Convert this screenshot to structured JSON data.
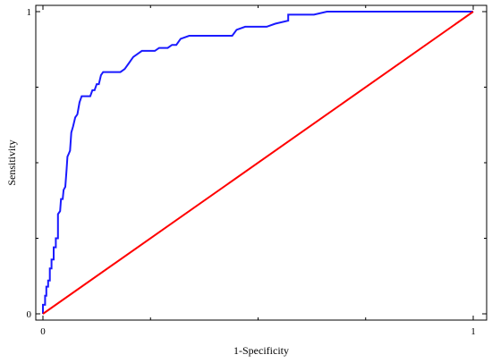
{
  "chart_data": {
    "type": "line",
    "title": "",
    "xlabel": "1-Specificity",
    "ylabel": "Sensitivity",
    "xlim": [
      0,
      1
    ],
    "ylim": [
      0,
      1
    ],
    "x_ticks": [
      "0",
      "1"
    ],
    "y_ticks": [
      "0",
      "1"
    ],
    "grid": false,
    "series": [
      {
        "color": "#1a1aff",
        "points": [
          [
            0.0,
            0.0
          ],
          [
            0.0,
            0.03
          ],
          [
            0.005,
            0.03
          ],
          [
            0.005,
            0.06
          ],
          [
            0.008,
            0.06
          ],
          [
            0.008,
            0.09
          ],
          [
            0.012,
            0.09
          ],
          [
            0.012,
            0.11
          ],
          [
            0.016,
            0.11
          ],
          [
            0.016,
            0.15
          ],
          [
            0.02,
            0.15
          ],
          [
            0.02,
            0.18
          ],
          [
            0.025,
            0.18
          ],
          [
            0.025,
            0.22
          ],
          [
            0.03,
            0.22
          ],
          [
            0.03,
            0.25
          ],
          [
            0.035,
            0.25
          ],
          [
            0.035,
            0.33
          ],
          [
            0.04,
            0.34
          ],
          [
            0.042,
            0.38
          ],
          [
            0.046,
            0.38
          ],
          [
            0.048,
            0.41
          ],
          [
            0.052,
            0.42
          ],
          [
            0.055,
            0.48
          ],
          [
            0.057,
            0.52
          ],
          [
            0.06,
            0.53
          ],
          [
            0.063,
            0.54
          ],
          [
            0.066,
            0.6
          ],
          [
            0.07,
            0.62
          ],
          [
            0.075,
            0.65
          ],
          [
            0.08,
            0.66
          ],
          [
            0.085,
            0.7
          ],
          [
            0.09,
            0.72
          ],
          [
            0.11,
            0.72
          ],
          [
            0.115,
            0.74
          ],
          [
            0.12,
            0.74
          ],
          [
            0.125,
            0.76
          ],
          [
            0.13,
            0.76
          ],
          [
            0.135,
            0.79
          ],
          [
            0.14,
            0.8
          ],
          [
            0.18,
            0.8
          ],
          [
            0.19,
            0.81
          ],
          [
            0.2,
            0.83
          ],
          [
            0.205,
            0.84
          ],
          [
            0.21,
            0.85
          ],
          [
            0.22,
            0.86
          ],
          [
            0.23,
            0.87
          ],
          [
            0.26,
            0.87
          ],
          [
            0.27,
            0.88
          ],
          [
            0.29,
            0.88
          ],
          [
            0.3,
            0.89
          ],
          [
            0.31,
            0.89
          ],
          [
            0.32,
            0.91
          ],
          [
            0.34,
            0.92
          ],
          [
            0.44,
            0.92
          ],
          [
            0.45,
            0.94
          ],
          [
            0.47,
            0.95
          ],
          [
            0.52,
            0.95
          ],
          [
            0.54,
            0.96
          ],
          [
            0.57,
            0.97
          ],
          [
            0.57,
            0.99
          ],
          [
            0.63,
            0.99
          ],
          [
            0.66,
            1.0
          ],
          [
            1.0,
            1.0
          ]
        ]
      },
      {
        "color": "#ff0000",
        "points": [
          [
            0,
            0
          ],
          [
            1,
            1
          ]
        ]
      }
    ]
  }
}
